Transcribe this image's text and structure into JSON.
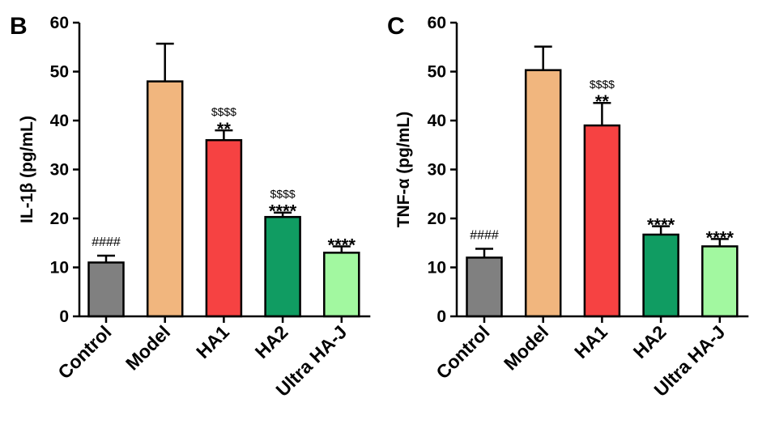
{
  "chart_data": [
    {
      "panel": "B",
      "type": "bar",
      "ylabel": "IL-1β (pg/mL)",
      "categories": [
        "Control",
        "Model",
        "HA1",
        "HA2",
        "Ultra HA-J"
      ],
      "values": [
        11,
        48,
        36,
        20.3,
        13
      ],
      "errors": [
        1.4,
        7.7,
        2.0,
        0.9,
        1.3
      ],
      "colors": [
        "#808080",
        "#F1B67E",
        "#F64242",
        "#109C62",
        "#A2F8A0"
      ],
      "annotations": [
        {
          "line1": "####",
          "line2": ""
        },
        {
          "line1": "",
          "line2": ""
        },
        {
          "line1": "$$$$",
          "line2": "**"
        },
        {
          "line1": "$$$$",
          "line2": "****"
        },
        {
          "line1": "",
          "line2": "****"
        }
      ],
      "ylim": [
        0,
        60
      ],
      "yticks": [
        0,
        10,
        20,
        30,
        40,
        50,
        60
      ]
    },
    {
      "panel": "C",
      "type": "bar",
      "ylabel": "TNF-α (pg/mL)",
      "categories": [
        "Control",
        "Model",
        "HA1",
        "HA2",
        "Ultra HA-J"
      ],
      "values": [
        12,
        50.3,
        39,
        16.7,
        14.3
      ],
      "errors": [
        1.8,
        4.8,
        4.6,
        1.7,
        1.5
      ],
      "colors": [
        "#808080",
        "#F1B67E",
        "#F64242",
        "#109C62",
        "#A2F8A0"
      ],
      "annotations": [
        {
          "line1": "####",
          "line2": ""
        },
        {
          "line1": "",
          "line2": ""
        },
        {
          "line1": "$$$$",
          "line2": "**"
        },
        {
          "line1": "",
          "line2": "****"
        },
        {
          "line1": "",
          "line2": "****"
        }
      ],
      "ylim": [
        0,
        60
      ],
      "yticks": [
        0,
        10,
        20,
        30,
        40,
        50,
        60
      ]
    }
  ]
}
